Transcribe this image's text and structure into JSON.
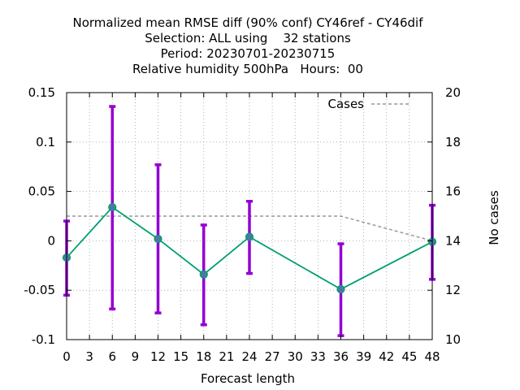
{
  "chart_data": {
    "type": "line",
    "title_lines": [
      "Normalized mean RMSE diff (90% conf) CY46ref - CY46dif",
      "Selection: ALL using    32 stations",
      "Period: 20230701-20230715",
      "Relative humidity 500hPa   Hours:  00"
    ],
    "xlabel": "Forecast length",
    "ylabel_right": "No cases",
    "xlim": [
      0,
      48
    ],
    "ylim": [
      -0.1,
      0.15
    ],
    "y2lim": [
      10,
      20
    ],
    "x_ticks": [
      "0",
      "3",
      "6",
      "9",
      "12",
      "15",
      "18",
      "21",
      "24",
      "27",
      "30",
      "33",
      "36",
      "39",
      "42",
      "45",
      "48"
    ],
    "y_ticks": [
      "0.15",
      "0.1",
      "0.05",
      "0",
      "-0.05",
      "-0.1"
    ],
    "y2_ticks": [
      "20",
      "18",
      "16",
      "14",
      "12",
      "10"
    ],
    "grid": true,
    "legend_position": "top-right",
    "legend_label": "Cases",
    "colors": {
      "line": "#009e73",
      "errorbar": "#9400d3",
      "marker": "#4b7a9e",
      "cases": "#999999"
    },
    "series": [
      {
        "x": [
          0,
          6,
          12,
          18,
          24,
          36,
          48
        ],
        "values": [
          -0.017,
          0.034,
          0.002,
          -0.034,
          0.004,
          -0.049,
          -0.001
        ],
        "lower": [
          -0.055,
          -0.069,
          -0.073,
          -0.085,
          -0.033,
          -0.096,
          -0.039
        ],
        "upper": [
          0.02,
          0.136,
          0.077,
          0.016,
          0.04,
          -0.003,
          0.036
        ]
      }
    ],
    "cases": {
      "name": "Cases",
      "x": [
        0,
        6,
        12,
        18,
        24,
        36,
        48
      ],
      "values": [
        15,
        15,
        15,
        15,
        15,
        15,
        14
      ]
    }
  }
}
